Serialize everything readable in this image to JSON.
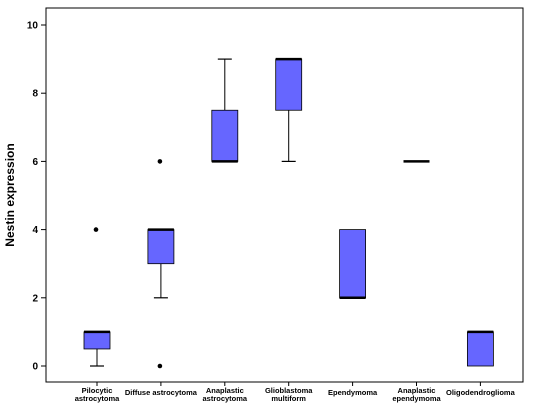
{
  "chart_data": {
    "type": "boxplot",
    "title": "",
    "xlabel": "",
    "ylabel": "Nestin expression",
    "ylim": [
      0,
      10
    ],
    "yticks": [
      0,
      2,
      4,
      6,
      8,
      10
    ],
    "grid": false,
    "box_color": "#6666FF",
    "categories": [
      {
        "label_lines": [
          "Pilocytic",
          "astrocytoma"
        ],
        "whisker_low": 0,
        "q1": 0.5,
        "median": 1,
        "q3": 1,
        "whisker_high": 1,
        "outliers": [
          4
        ]
      },
      {
        "label_lines": [
          "Diffuse astrocytoma"
        ],
        "whisker_low": 2,
        "q1": 3,
        "median": 4,
        "q3": 4,
        "whisker_high": 4,
        "outliers": [
          6,
          0
        ]
      },
      {
        "label_lines": [
          "Anaplastic",
          "astrocytoma"
        ],
        "whisker_low": 6,
        "q1": 6,
        "median": 6,
        "q3": 7.5,
        "whisker_high": 9,
        "outliers": []
      },
      {
        "label_lines": [
          "Glioblastoma",
          "multiform"
        ],
        "whisker_low": 6,
        "q1": 7.5,
        "median": 9,
        "q3": 9,
        "whisker_high": 9,
        "outliers": []
      },
      {
        "label_lines": [
          "Ependymoma"
        ],
        "whisker_low": 2,
        "q1": 2,
        "median": 2,
        "q3": 4,
        "whisker_high": 4,
        "outliers": []
      },
      {
        "label_lines": [
          "Anaplastic",
          "ependymoma"
        ],
        "whisker_low": 6,
        "q1": 6,
        "median": 6,
        "q3": 6,
        "whisker_high": 6,
        "outliers": []
      },
      {
        "label_lines": [
          "Oligodendroglioma"
        ],
        "whisker_low": 0,
        "q1": 0,
        "median": 1,
        "q3": 1,
        "whisker_high": 1,
        "outliers": []
      }
    ]
  }
}
